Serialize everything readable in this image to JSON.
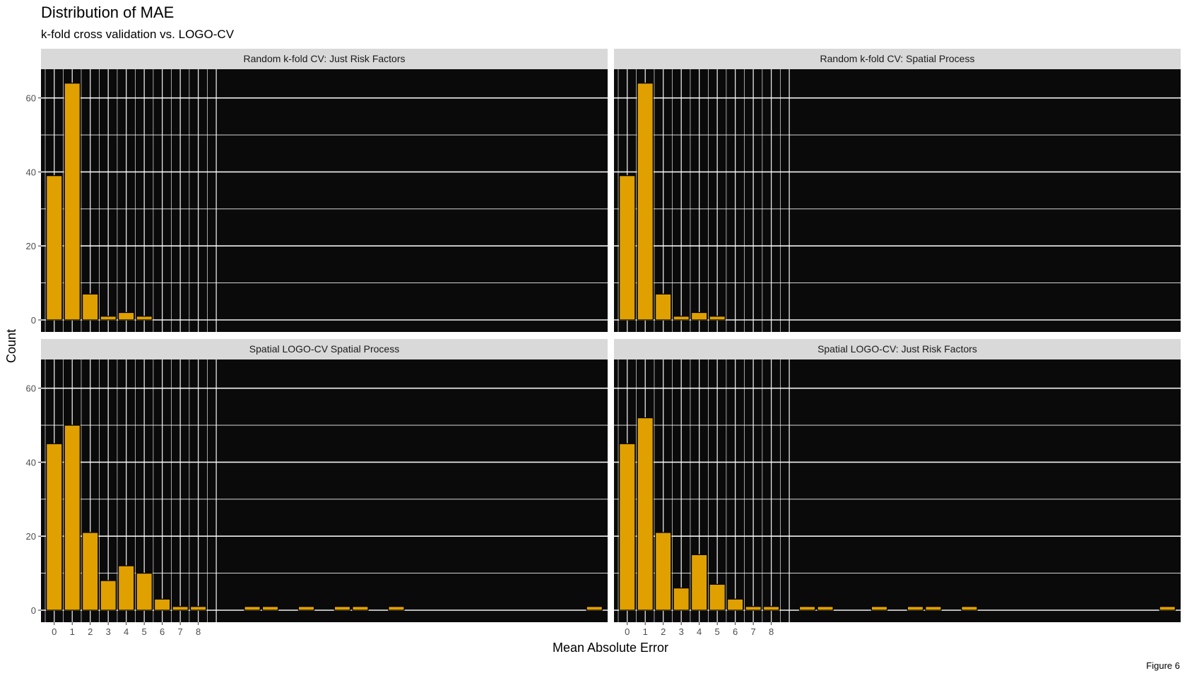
{
  "title": "Distribution of MAE",
  "subtitle": "k-fold cross validation vs. LOGO-CV",
  "caption": "Figure 6",
  "colors": {
    "panel_bg": "#0a0a0a",
    "strip_bg": "#d9d9d9",
    "bar_fill": "#e0a000",
    "bar_stroke": "#000000",
    "grid": "#ffffff"
  },
  "chart_data": {
    "type": "bar",
    "xlabel": "Mean Absolute Error",
    "ylabel": "Count",
    "x_ticks": [
      0,
      1,
      2,
      3,
      4,
      5,
      6,
      7,
      8
    ],
    "y_ticks": [
      0,
      20,
      40,
      60
    ],
    "ylim": [
      0,
      67
    ],
    "xlim": [
      -0.5,
      26.5
    ],
    "bin_width": 0.87,
    "grid": true,
    "panels": [
      {
        "label": "Random k-fold CV: Just Risk Factors",
        "bars": [
          {
            "x": 0,
            "count": 39
          },
          {
            "x": 1,
            "count": 64
          },
          {
            "x": 2,
            "count": 7
          },
          {
            "x": 3,
            "count": 1
          },
          {
            "x": 4,
            "count": 2
          },
          {
            "x": 5,
            "count": 1
          }
        ]
      },
      {
        "label": "Random k-fold CV: Spatial Process",
        "bars": [
          {
            "x": 0,
            "count": 39
          },
          {
            "x": 1,
            "count": 64
          },
          {
            "x": 2,
            "count": 7
          },
          {
            "x": 3,
            "count": 1
          },
          {
            "x": 4,
            "count": 2
          },
          {
            "x": 5,
            "count": 1
          }
        ]
      },
      {
        "label": "Spatial LOGO-CV Spatial Process",
        "bars": [
          {
            "x": 0,
            "count": 45
          },
          {
            "x": 1,
            "count": 50
          },
          {
            "x": 2,
            "count": 21
          },
          {
            "x": 3,
            "count": 8
          },
          {
            "x": 4,
            "count": 12
          },
          {
            "x": 5,
            "count": 10
          },
          {
            "x": 6,
            "count": 3
          },
          {
            "x": 7,
            "count": 1
          },
          {
            "x": 8,
            "count": 1
          },
          {
            "x": 11,
            "count": 1
          },
          {
            "x": 12,
            "count": 1
          },
          {
            "x": 14,
            "count": 1
          },
          {
            "x": 16,
            "count": 1
          },
          {
            "x": 17,
            "count": 1
          },
          {
            "x": 19,
            "count": 1
          },
          {
            "x": 30,
            "count": 1
          }
        ]
      },
      {
        "label": "Spatial LOGO-CV: Just Risk Factors",
        "bars": [
          {
            "x": 0,
            "count": 45
          },
          {
            "x": 1,
            "count": 52
          },
          {
            "x": 2,
            "count": 21
          },
          {
            "x": 3,
            "count": 6
          },
          {
            "x": 4,
            "count": 15
          },
          {
            "x": 5,
            "count": 7
          },
          {
            "x": 6,
            "count": 3
          },
          {
            "x": 7,
            "count": 1
          },
          {
            "x": 8,
            "count": 1
          },
          {
            "x": 10,
            "count": 1
          },
          {
            "x": 11,
            "count": 1
          },
          {
            "x": 14,
            "count": 1
          },
          {
            "x": 16,
            "count": 1
          },
          {
            "x": 17,
            "count": 1
          },
          {
            "x": 19,
            "count": 1
          },
          {
            "x": 30,
            "count": 1
          }
        ]
      }
    ]
  }
}
